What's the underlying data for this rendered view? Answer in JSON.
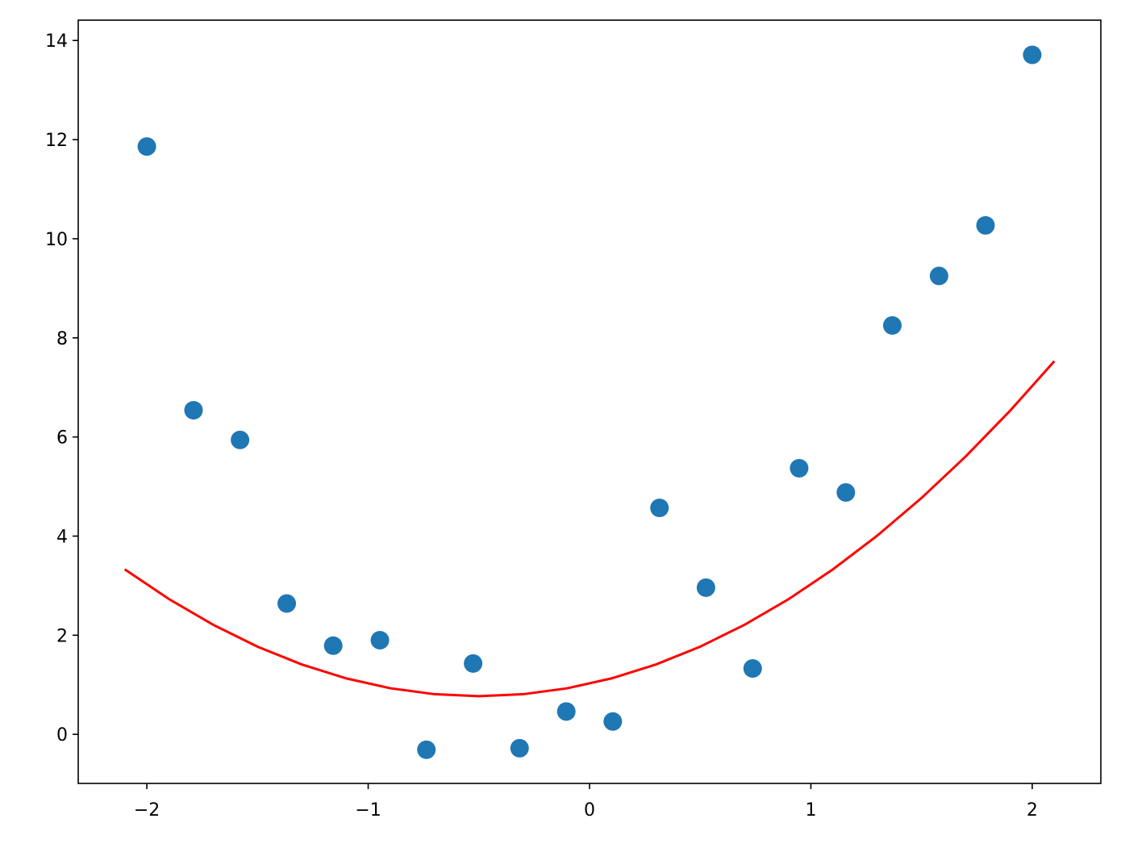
{
  "chart_data": {
    "type": "scatter",
    "xlim": [
      -2.31,
      2.31
    ],
    "ylim": [
      -0.99,
      14.41
    ],
    "xticks": [
      {
        "value": -2,
        "label": "−2"
      },
      {
        "value": -1,
        "label": "−1"
      },
      0,
      1,
      2
    ],
    "yticks": [
      0,
      2,
      4,
      6,
      8,
      10,
      12,
      14
    ],
    "series": [
      {
        "type": "scatter",
        "color": "#1f77b4",
        "x": [
          -2,
          -1.789,
          -1.579,
          -1.368,
          -1.158,
          -0.947,
          -0.737,
          -0.526,
          -0.316,
          -0.105,
          0.105,
          0.316,
          0.526,
          0.737,
          0.947,
          1.158,
          1.368,
          1.579,
          1.789,
          2
        ],
        "values": [
          11.86,
          6.54,
          5.94,
          2.64,
          1.79,
          1.9,
          -0.31,
          1.43,
          -0.28,
          0.46,
          0.26,
          4.57,
          2.96,
          1.33,
          5.37,
          4.88,
          8.25,
          9.25,
          10.27,
          13.71
        ]
      },
      {
        "type": "line",
        "color": "#ff0000",
        "x": [
          -2.1,
          -1.9,
          -1.7,
          -1.5,
          -1.3,
          -1.1,
          -0.9,
          -0.7,
          -0.5,
          -0.3,
          -0.1,
          0.1,
          0.3,
          0.5,
          0.7,
          0.9,
          1.1,
          1.3,
          1.5,
          1.7,
          1.9,
          2.1
        ],
        "values": [
          3.33,
          2.73,
          2.21,
          1.77,
          1.41,
          1.13,
          0.93,
          0.81,
          0.77,
          0.81,
          0.93,
          1.13,
          1.41,
          1.77,
          2.21,
          2.73,
          3.33,
          4.01,
          4.77,
          5.61,
          6.53,
          7.53
        ]
      }
    ]
  }
}
